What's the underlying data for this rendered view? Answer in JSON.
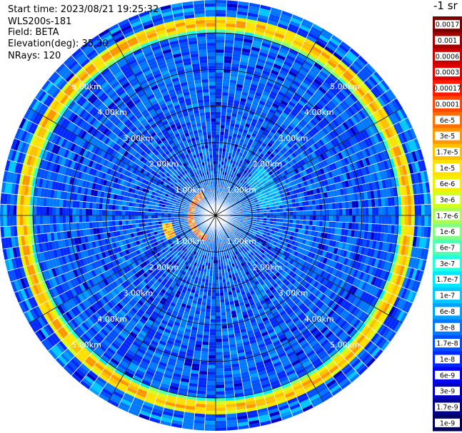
{
  "info": {
    "start_time": "Start time: 2023/08/21 19:25:32",
    "instrument": "WLS200s-181",
    "field": "Field: BETA",
    "elevation": "Elevation(deg): 35.30",
    "nrays": "NRays: 120"
  },
  "colorbar": {
    "title": "-1 sr",
    "labels": [
      "0.0017",
      "0.001",
      "0.0006",
      "0.0003",
      "0.00017",
      "0.0001",
      "6e-5",
      "3e-5",
      "1.7e-5",
      "1e-5",
      "6e-6",
      "3e-6",
      "1.7e-6",
      "1e-6",
      "6e-7",
      "3e-7",
      "1.7e-7",
      "1e-7",
      "6e-8",
      "3e-8",
      "1.7e-8",
      "1e-8",
      "6e-9",
      "3e-9",
      "1.7e-9",
      "1e-9"
    ],
    "colors": [
      "#7a0000",
      "#a50000",
      "#c80000",
      "#e00000",
      "#ff1a00",
      "#ff4800",
      "#ff7000",
      "#ff9800",
      "#ffc000",
      "#ffe000",
      "#f0f000",
      "#d0ff20",
      "#a8ff50",
      "#80ff80",
      "#50ffb0",
      "#20ffe0",
      "#00e8ff",
      "#00c8ff",
      "#00a0ff",
      "#0078ff",
      "#0050ff",
      "#0028ff",
      "#0000f0",
      "#0000c0",
      "#000090",
      "#000060"
    ]
  },
  "chart_data": {
    "type": "heatmap",
    "projection": "polar-ppi",
    "n_rays": 120,
    "range_rings_km": [
      1,
      2,
      3,
      4,
      5
    ],
    "ring_labels": [
      "1.00km",
      "2.00km",
      "3.00km",
      "4.00km",
      "5.00km"
    ],
    "max_range_km": 5.9,
    "features": [
      {
        "name": "aerosol-layer-ring",
        "range_km": 5.2,
        "level": "1e-5 to 1e-4"
      },
      {
        "name": "near-field-echo",
        "range_km": 0.6,
        "level": "3e-5 to 1e-4"
      }
    ]
  }
}
